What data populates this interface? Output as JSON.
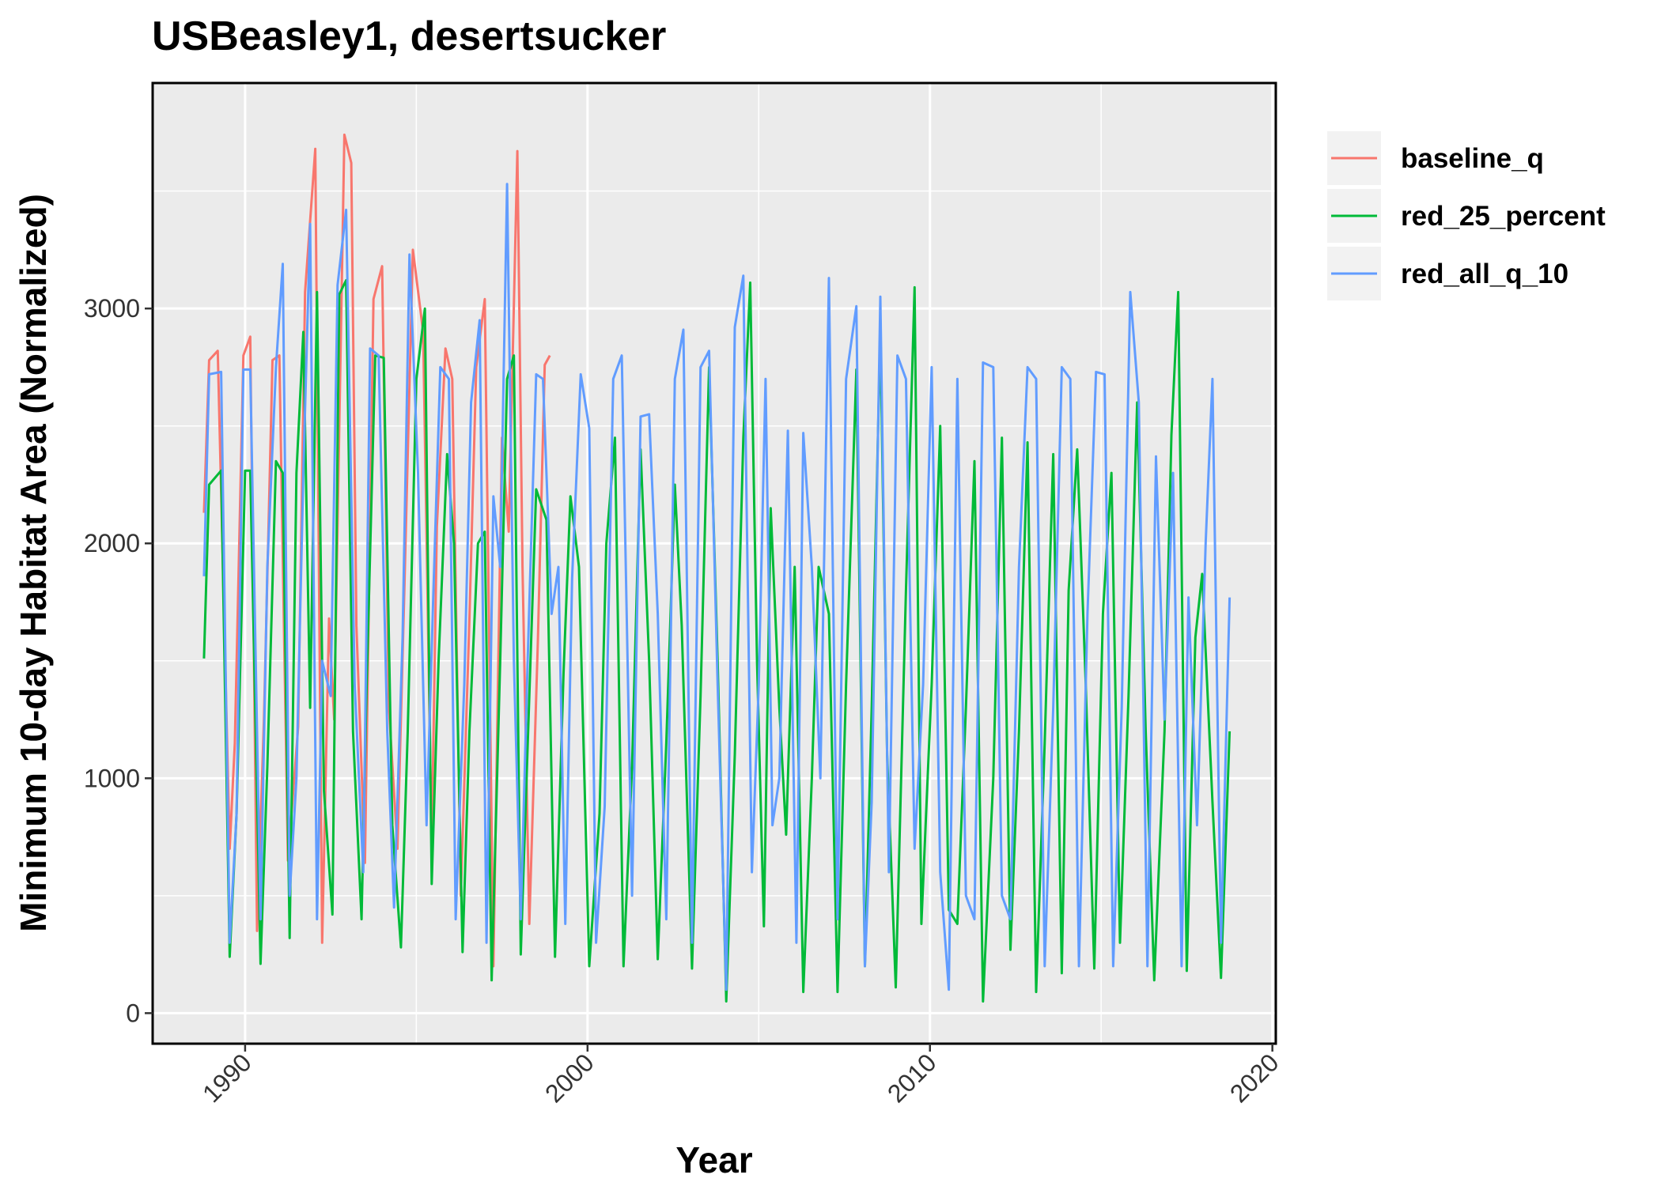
{
  "chart_data": {
    "type": "line",
    "title": "USBeasley1, desertsucker",
    "xlabel": "Year",
    "ylabel": "Minimum 10-day Habitat Area (Normalized)",
    "xlim": [
      1987.3,
      2020.1
    ],
    "ylim": [
      -130,
      3960
    ],
    "x_ticks": [
      1990,
      2000,
      2010,
      2020
    ],
    "x_tick_labels": [
      "1990",
      "2000",
      "2010",
      "2020"
    ],
    "y_ticks": [
      0,
      1000,
      2000,
      3000
    ],
    "y_tick_labels": [
      "0",
      "1000",
      "2000",
      "3000"
    ],
    "grid": true,
    "legend_position": "right",
    "series": [
      {
        "name": "baseline_q",
        "color": "#F8766D",
        "x": [
          1988.8,
          1988.95,
          1989.2,
          1989.55,
          1989.7,
          1989.95,
          1990.15,
          1990.35,
          1990.55,
          1990.8,
          1991.0,
          1991.25,
          1991.55,
          1991.75,
          1992.05,
          1992.25,
          1992.45,
          1992.6,
          1992.9,
          1993.1,
          1993.25,
          1993.5,
          1993.75,
          1994.0,
          1994.2,
          1994.45,
          1994.65,
          1994.9,
          1995.2,
          1995.45,
          1995.6,
          1995.85,
          1996.05,
          1996.3,
          1996.55,
          1996.75,
          1997.0,
          1997.25,
          1997.5,
          1997.7,
          1997.95,
          1998.1,
          1998.3,
          1998.55,
          1998.75,
          1998.9
        ],
        "y": [
          2130,
          2780,
          2820,
          700,
          1150,
          2800,
          2880,
          350,
          1250,
          2780,
          2800,
          650,
          1220,
          3070,
          3680,
          300,
          1680,
          1250,
          3740,
          3620,
          1650,
          640,
          3040,
          3180,
          1300,
          700,
          1800,
          3250,
          2900,
          700,
          2070,
          2830,
          2700,
          500,
          1680,
          2750,
          3040,
          200,
          2450,
          2050,
          3670,
          1900,
          380,
          1580,
          2760,
          2800
        ]
      },
      {
        "name": "red_25_percent",
        "color": "#00BA38",
        "x": [
          1988.8,
          1988.95,
          1989.3,
          1989.55,
          1989.75,
          1990.0,
          1990.15,
          1990.45,
          1990.65,
          1990.9,
          1991.1,
          1991.3,
          1991.5,
          1991.7,
          1991.9,
          1992.1,
          1992.3,
          1992.55,
          1992.75,
          1992.95,
          1993.15,
          1993.4,
          1993.55,
          1993.8,
          1994.05,
          1994.3,
          1994.55,
          1994.75,
          1995.0,
          1995.25,
          1995.45,
          1995.65,
          1995.9,
          1996.1,
          1996.35,
          1996.55,
          1996.8,
          1997.0,
          1997.2,
          1997.45,
          1997.65,
          1997.85,
          1998.05,
          1998.3,
          1998.5,
          1998.8,
          1999.05,
          1999.3,
          1999.5,
          1999.75,
          2000.05,
          2000.35,
          2000.55,
          2000.8,
          2001.05,
          2001.3,
          2001.55,
          2001.8,
          2002.05,
          2002.3,
          2002.55,
          2002.75,
          2003.05,
          2003.3,
          2003.55,
          2003.8,
          2004.05,
          2004.3,
          2004.55,
          2004.75,
          2004.95,
          2005.15,
          2005.35,
          2005.6,
          2005.8,
          2006.05,
          2006.3,
          2006.55,
          2006.75,
          2007.05,
          2007.3,
          2007.55,
          2007.85,
          2008.1,
          2008.3,
          2008.55,
          2008.75,
          2009.0,
          2009.3,
          2009.55,
          2009.75,
          2010.05,
          2010.3,
          2010.55,
          2010.8,
          2011.05,
          2011.3,
          2011.55,
          2011.85,
          2012.1,
          2012.35,
          2012.6,
          2012.85,
          2013.1,
          2013.35,
          2013.6,
          2013.85,
          2014.05,
          2014.3,
          2014.55,
          2014.8,
          2015.05,
          2015.3,
          2015.55,
          2015.8,
          2016.05,
          2016.3,
          2016.55,
          2016.85,
          2017.05,
          2017.25,
          2017.5,
          2017.75,
          2017.95,
          2018.25,
          2018.5,
          2018.75
        ],
        "y": [
          1510,
          2250,
          2310,
          240,
          850,
          2310,
          2310,
          210,
          1050,
          2350,
          2300,
          320,
          2300,
          2900,
          1300,
          3070,
          950,
          420,
          3060,
          3120,
          1200,
          400,
          1400,
          2800,
          2790,
          800,
          280,
          1200,
          2700,
          3000,
          550,
          1500,
          2380,
          2000,
          260,
          1200,
          2000,
          2050,
          140,
          1500,
          2700,
          2800,
          250,
          1350,
          2230,
          2100,
          240,
          1450,
          2200,
          1900,
          200,
          850,
          2000,
          2450,
          200,
          1050,
          2400,
          1500,
          230,
          1150,
          2250,
          1650,
          190,
          1350,
          2750,
          1500,
          50,
          1100,
          2450,
          3110,
          1500,
          370,
          2150,
          1300,
          760,
          1900,
          90,
          1000,
          1900,
          1700,
          90,
          1400,
          2740,
          200,
          1300,
          2900,
          1100,
          110,
          1800,
          3090,
          380,
          1400,
          2500,
          440,
          380,
          1300,
          2350,
          50,
          1000,
          2450,
          270,
          1200,
          2430,
          90,
          1150,
          2380,
          170,
          1800,
          2400,
          1400,
          190,
          1700,
          2300,
          300,
          1350,
          2600,
          1200,
          140,
          1200,
          2460,
          3070,
          180,
          1600,
          1870,
          900,
          150,
          1200
        ]
      },
      {
        "name": "red_all_q_10",
        "color": "#619CFF",
        "x": [
          1988.8,
          1988.95,
          1989.3,
          1989.55,
          1989.75,
          1989.95,
          1990.15,
          1990.45,
          1990.65,
          1990.9,
          1991.1,
          1991.3,
          1991.5,
          1991.7,
          1991.9,
          1992.1,
          1992.25,
          1992.5,
          1992.7,
          1992.95,
          1993.2,
          1993.45,
          1993.65,
          1993.9,
          1994.15,
          1994.35,
          1994.6,
          1994.8,
          1995.05,
          1995.3,
          1995.5,
          1995.7,
          1995.95,
          1996.15,
          1996.4,
          1996.6,
          1996.85,
          1997.05,
          1997.25,
          1997.45,
          1997.65,
          1997.85,
          1998.05,
          1998.25,
          1998.5,
          1998.7,
          1998.95,
          1999.15,
          1999.35,
          1999.55,
          1999.8,
          2000.05,
          2000.25,
          2000.5,
          2000.75,
          2001.0,
          2001.3,
          2001.55,
          2001.8,
          2002.05,
          2002.3,
          2002.55,
          2002.8,
          2003.05,
          2003.3,
          2003.55,
          2003.8,
          2004.05,
          2004.3,
          2004.55,
          2004.8,
          2005.0,
          2005.2,
          2005.4,
          2005.6,
          2005.85,
          2006.1,
          2006.3,
          2006.55,
          2006.8,
          2007.05,
          2007.3,
          2007.55,
          2007.85,
          2008.1,
          2008.3,
          2008.55,
          2008.8,
          2009.05,
          2009.3,
          2009.55,
          2009.8,
          2010.05,
          2010.3,
          2010.55,
          2010.8,
          2011.05,
          2011.3,
          2011.55,
          2011.85,
          2012.1,
          2012.35,
          2012.6,
          2012.85,
          2013.1,
          2013.35,
          2013.6,
          2013.85,
          2014.1,
          2014.35,
          2014.6,
          2014.85,
          2015.1,
          2015.35,
          2015.6,
          2015.85,
          2016.1,
          2016.35,
          2016.6,
          2016.85,
          2017.1,
          2017.35,
          2017.55,
          2017.8,
          2018.05,
          2018.25,
          2018.5,
          2018.75
        ],
        "y": [
          1860,
          2720,
          2730,
          300,
          850,
          2740,
          2740,
          400,
          1900,
          2750,
          3190,
          500,
          1000,
          2300,
          3360,
          400,
          1500,
          1350,
          3100,
          3420,
          1400,
          600,
          2830,
          2800,
          1200,
          450,
          1600,
          3230,
          2300,
          800,
          1800,
          2750,
          2700,
          400,
          1400,
          2600,
          2950,
          300,
          2200,
          1900,
          3530,
          1500,
          400,
          1500,
          2720,
          2700,
          1700,
          1900,
          380,
          1850,
          2720,
          2490,
          300,
          880,
          2700,
          2800,
          500,
          2540,
          2550,
          1700,
          400,
          2700,
          2910,
          300,
          2750,
          2820,
          1400,
          100,
          2920,
          3140,
          600,
          1400,
          2700,
          800,
          1000,
          2480,
          300,
          2470,
          1900,
          1000,
          3130,
          400,
          2700,
          3010,
          200,
          900,
          3050,
          600,
          2800,
          2700,
          700,
          1400,
          2750,
          600,
          100,
          2700,
          500,
          400,
          2770,
          2750,
          500,
          400,
          1900,
          2750,
          2700,
          200,
          1300,
          2750,
          2700,
          200,
          1700,
          2730,
          2720,
          200,
          1300,
          3070,
          2600,
          200,
          2370,
          1250,
          2300,
          200,
          1770,
          800,
          2000,
          2700,
          300,
          1770
        ]
      }
    ]
  }
}
